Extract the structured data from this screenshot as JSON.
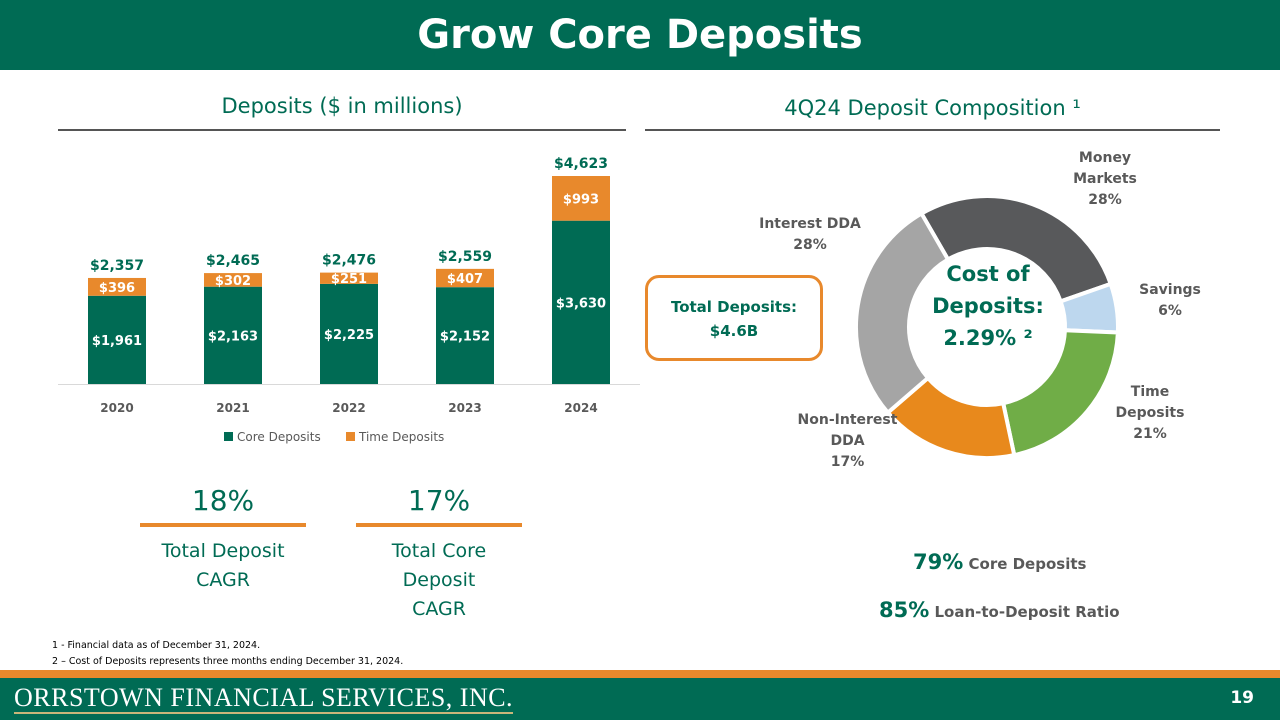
{
  "title": "Grow Core Deposits",
  "left_header": "Deposits ($ in millions)",
  "right_header": "4Q24 Deposit Composition ¹",
  "chart_data": [
    {
      "type": "bar",
      "stacked": true,
      "title": "Deposits ($ in millions)",
      "categories": [
        "2020",
        "2021",
        "2022",
        "2023",
        "2024"
      ],
      "series": [
        {
          "name": "Core Deposits",
          "color": "#006B54",
          "values": [
            1961,
            2163,
            2225,
            2152,
            3630
          ],
          "labels": [
            "$1,961",
            "$2,163",
            "$2,225",
            "$2,152",
            "$3,630"
          ]
        },
        {
          "name": "Time Deposits",
          "color": "#E8892C",
          "values": [
            396,
            302,
            251,
            407,
            993
          ],
          "labels": [
            "$396",
            "$302",
            "$251",
            "$407",
            "$993"
          ]
        }
      ],
      "totals": [
        "$2,357",
        "$2,465",
        "$2,476",
        "$2,559",
        "$4,623"
      ],
      "legend_position": "bottom"
    },
    {
      "type": "pie",
      "donut": true,
      "title": "4Q24 Deposit Composition",
      "slices": [
        {
          "label": "Money Markets",
          "value": 28,
          "pct": "28%",
          "color": "#58595B"
        },
        {
          "label": "Savings",
          "value": 6,
          "pct": "6%",
          "color": "#BDD7EE"
        },
        {
          "label": "Time Deposits",
          "value": 21,
          "pct": "21%",
          "color": "#70AD47"
        },
        {
          "label": "Non-Interest DDA",
          "value": 17,
          "pct": "17%",
          "color": "#E8891C"
        },
        {
          "label": "Interest DDA",
          "value": 28,
          "pct": "28%",
          "color": "#A5A5A5"
        }
      ],
      "center": [
        "Cost of",
        "Deposits:",
        "2.29% ²"
      ]
    }
  ],
  "total_box": {
    "line1": "Total Deposits:",
    "line2": "$4.6B"
  },
  "cagr": [
    {
      "value": "18%",
      "l1": "Total Deposit",
      "l2": "CAGR",
      "l3": ""
    },
    {
      "value": "17%",
      "l1": "Total Core",
      "l2": "Deposit",
      "l3": "CAGR"
    }
  ],
  "stats": [
    {
      "value": "79%",
      "label": "Core Deposits"
    },
    {
      "value": "85%",
      "label": "Loan-to-Deposit Ratio"
    }
  ],
  "footnotes": [
    "1 -  Financial data as of December 31, 2024.",
    "2 – Cost of Deposits represents three months ending December 31, 2024."
  ],
  "logo": "ORRSTOWN FINANCIAL SERVICES, INC.",
  "page_number": "19"
}
